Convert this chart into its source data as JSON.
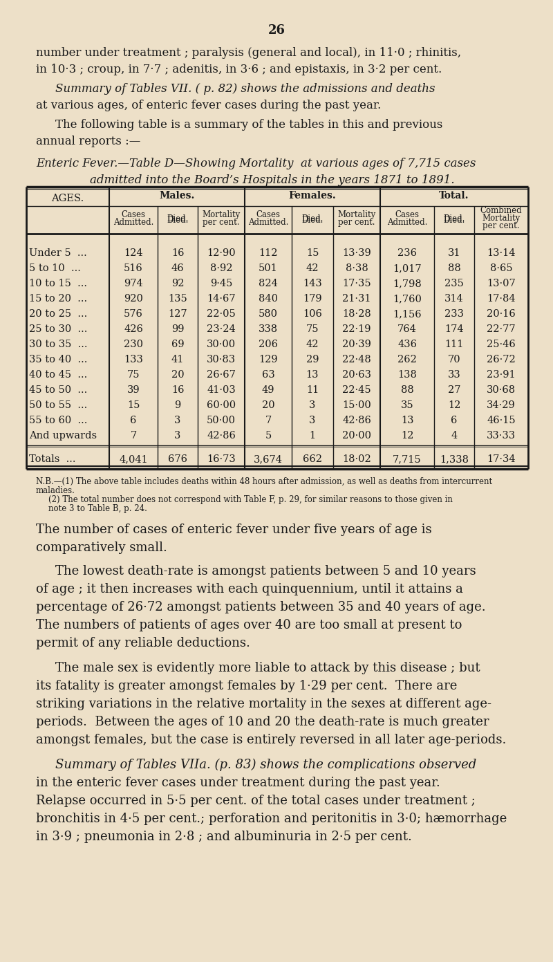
{
  "page_number": "26",
  "bg_color": "#EDE0C8",
  "text_color": "#1a1a1a",
  "intro_text_1": "number under treatment ; paralysis (general and local), in 11·0 ; rhinitis,",
  "intro_text_2": "in 10·3 ; croup, in 7·7 ; adenitis, in 3·6 ; and epistaxis, in 3·2 per cent.",
  "summary_text_1": "Summary of Tables VII. ( p. 82) shows the admissions and deaths",
  "summary_text_2": "at various ages, of enteric fever cases during the past year.",
  "following_text": "The following table is a summary of the tables in this and previous",
  "annual_text": "annual reports :—",
  "table_title_1": "Enteric Fever.—Table D—Showing Mortality  at various ages of 7,715 cases",
  "table_title_2": "admitted into the Board’s Hospitals in the years 1871 to 1891.",
  "ages": [
    "Under 5",
    "5 to 10",
    "10 to 15",
    "15 to 20",
    "20 to 25",
    "25 to 30",
    "30 to 35",
    "35 to 40",
    "40 to 45",
    "45 to 50",
    "50 to 55",
    "55 to 60",
    "And upwards"
  ],
  "male_cases": [
    124,
    516,
    974,
    920,
    576,
    426,
    230,
    133,
    75,
    39,
    15,
    6,
    7
  ],
  "male_died": [
    16,
    46,
    92,
    135,
    127,
    99,
    69,
    41,
    20,
    16,
    9,
    3,
    3
  ],
  "male_mort": [
    "12·90",
    "8·92",
    "9·45",
    "14·67",
    "22·05",
    "23·24",
    "30·00",
    "30·83",
    "26·67",
    "41·03",
    "60·00",
    "50·00",
    "42·86"
  ],
  "female_cases": [
    112,
    501,
    824,
    840,
    580,
    338,
    206,
    129,
    63,
    49,
    20,
    7,
    5
  ],
  "female_died": [
    15,
    42,
    143,
    179,
    106,
    75,
    42,
    29,
    13,
    11,
    3,
    3,
    1
  ],
  "female_mort": [
    "13·39",
    "8·38",
    "17·35",
    "21·31",
    "18·28",
    "22·19",
    "20·39",
    "22·48",
    "20·63",
    "22·45",
    "15·00",
    "42·86",
    "20·00"
  ],
  "total_cases": [
    236,
    1017,
    1798,
    1760,
    1156,
    764,
    436,
    262,
    138,
    88,
    35,
    13,
    12
  ],
  "total_died": [
    31,
    88,
    235,
    314,
    233,
    174,
    111,
    70,
    33,
    27,
    12,
    6,
    4
  ],
  "combined_mort": [
    "13·14",
    "8·65",
    "13·07",
    "17·84",
    "20·16",
    "22·77",
    "25·46",
    "26·72",
    "23·91",
    "30·68",
    "34·29",
    "46·15",
    "33·33"
  ],
  "total_male_cases": "4,041",
  "total_male_died": "676",
  "total_male_mort": "16·73",
  "total_female_cases": "3,674",
  "total_female_died": "662",
  "total_female_mort": "18·02",
  "total_total_cases": "7,715",
  "total_total_died": "1,338",
  "total_combined_mort": "17·34",
  "nb_text_1": "N.B.—(1) The above table includes deaths within 48 hours after admission, as well as deaths from intercurrent",
  "nb_text_2": "maladies.",
  "nb_text_3": "(2) The total number does not correspond with Table F, p. 29, for similar reasons to those given in",
  "nb_text_4": "note 3 to Table B, p. 24.",
  "body_para_1a": "The number of cases of enteric fever under five years of age is",
  "body_para_1b": "comparatively small.",
  "body_para_2a": "The lowest death-rate is amongst patients between 5 and 10 years",
  "body_para_2b": "of age ; it then increases with each quinquennium, until it attains a",
  "body_para_2c": "percentage of 26·72 amongst patients between 35 and 40 years of age.",
  "body_para_2d": "The numbers of patients of ages over 40 are too small at present to",
  "body_para_2e": "permit of any reliable deductions.",
  "body_para_3a": "The male sex is evidently more liable to attack by this disease ; but",
  "body_para_3b": "its fatality is greater amongst females by 1·29 per cent.  There are",
  "body_para_3c": "striking variations in the relative mortality in the sexes at different age-",
  "body_para_3d": "periods.  Between the ages of 10 and 20 the death-rate is much greater",
  "body_para_3e": "amongst females, but the case is entirely reversed in all later age-periods.",
  "body_para_4a": "Summary of Tables VIIa. (p. 83) shows the complications observed",
  "body_para_4b": "in the enteric fever cases under treatment during the past year.",
  "body_para_4c": "Relapse occurred in 5·5 per cent. of the total cases under treatment ;",
  "body_para_4d": "bronchitis in 4·5 per cent.; perforation and peritonitis in 3·0; hæmorrhage",
  "body_para_4e": "in 3·9 ; pneumonia in 2·8 ; and albuminuria in 2·5 per cent."
}
